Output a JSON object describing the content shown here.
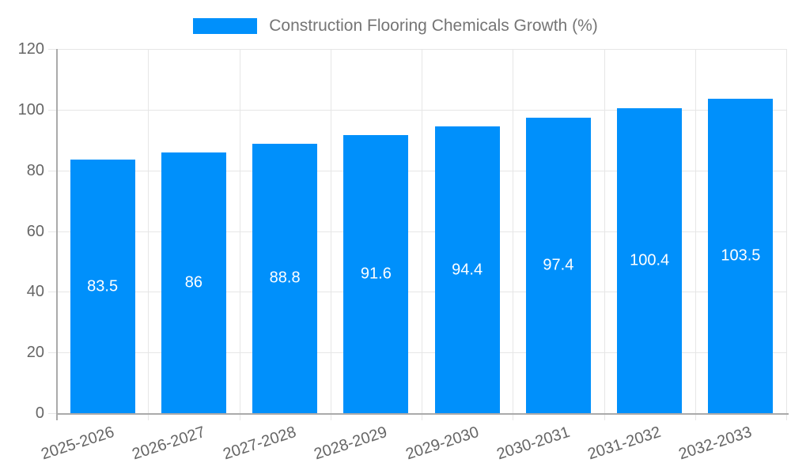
{
  "chart_data": {
    "type": "bar",
    "title": "Construction Flooring Chemicals Growth (%)",
    "categories": [
      "2025-2026",
      "2026-2027",
      "2027-2028",
      "2028-2029",
      "2029-2030",
      "2030-2031",
      "2031-2032",
      "2032-2033"
    ],
    "values": [
      83.5,
      86,
      88.8,
      91.6,
      94.4,
      97.4,
      100.4,
      103.5
    ],
    "value_labels": [
      "83.5",
      "86",
      "88.8",
      "91.6",
      "94.4",
      "97.4",
      "100.4",
      "103.5"
    ],
    "xlabel": "",
    "ylabel": "",
    "ylim": [
      0,
      120
    ],
    "yticks": [
      0,
      20,
      40,
      60,
      80,
      100,
      120
    ],
    "grid": true,
    "legend_position": "top",
    "colors": {
      "bar": "#0090fb",
      "bar_label": "#ffffff",
      "axis_text": "#666666",
      "legend_text": "#757575",
      "gridline": "#e6e6e6",
      "axis_line": "#aaaaaa",
      "background": "#ffffff"
    }
  }
}
